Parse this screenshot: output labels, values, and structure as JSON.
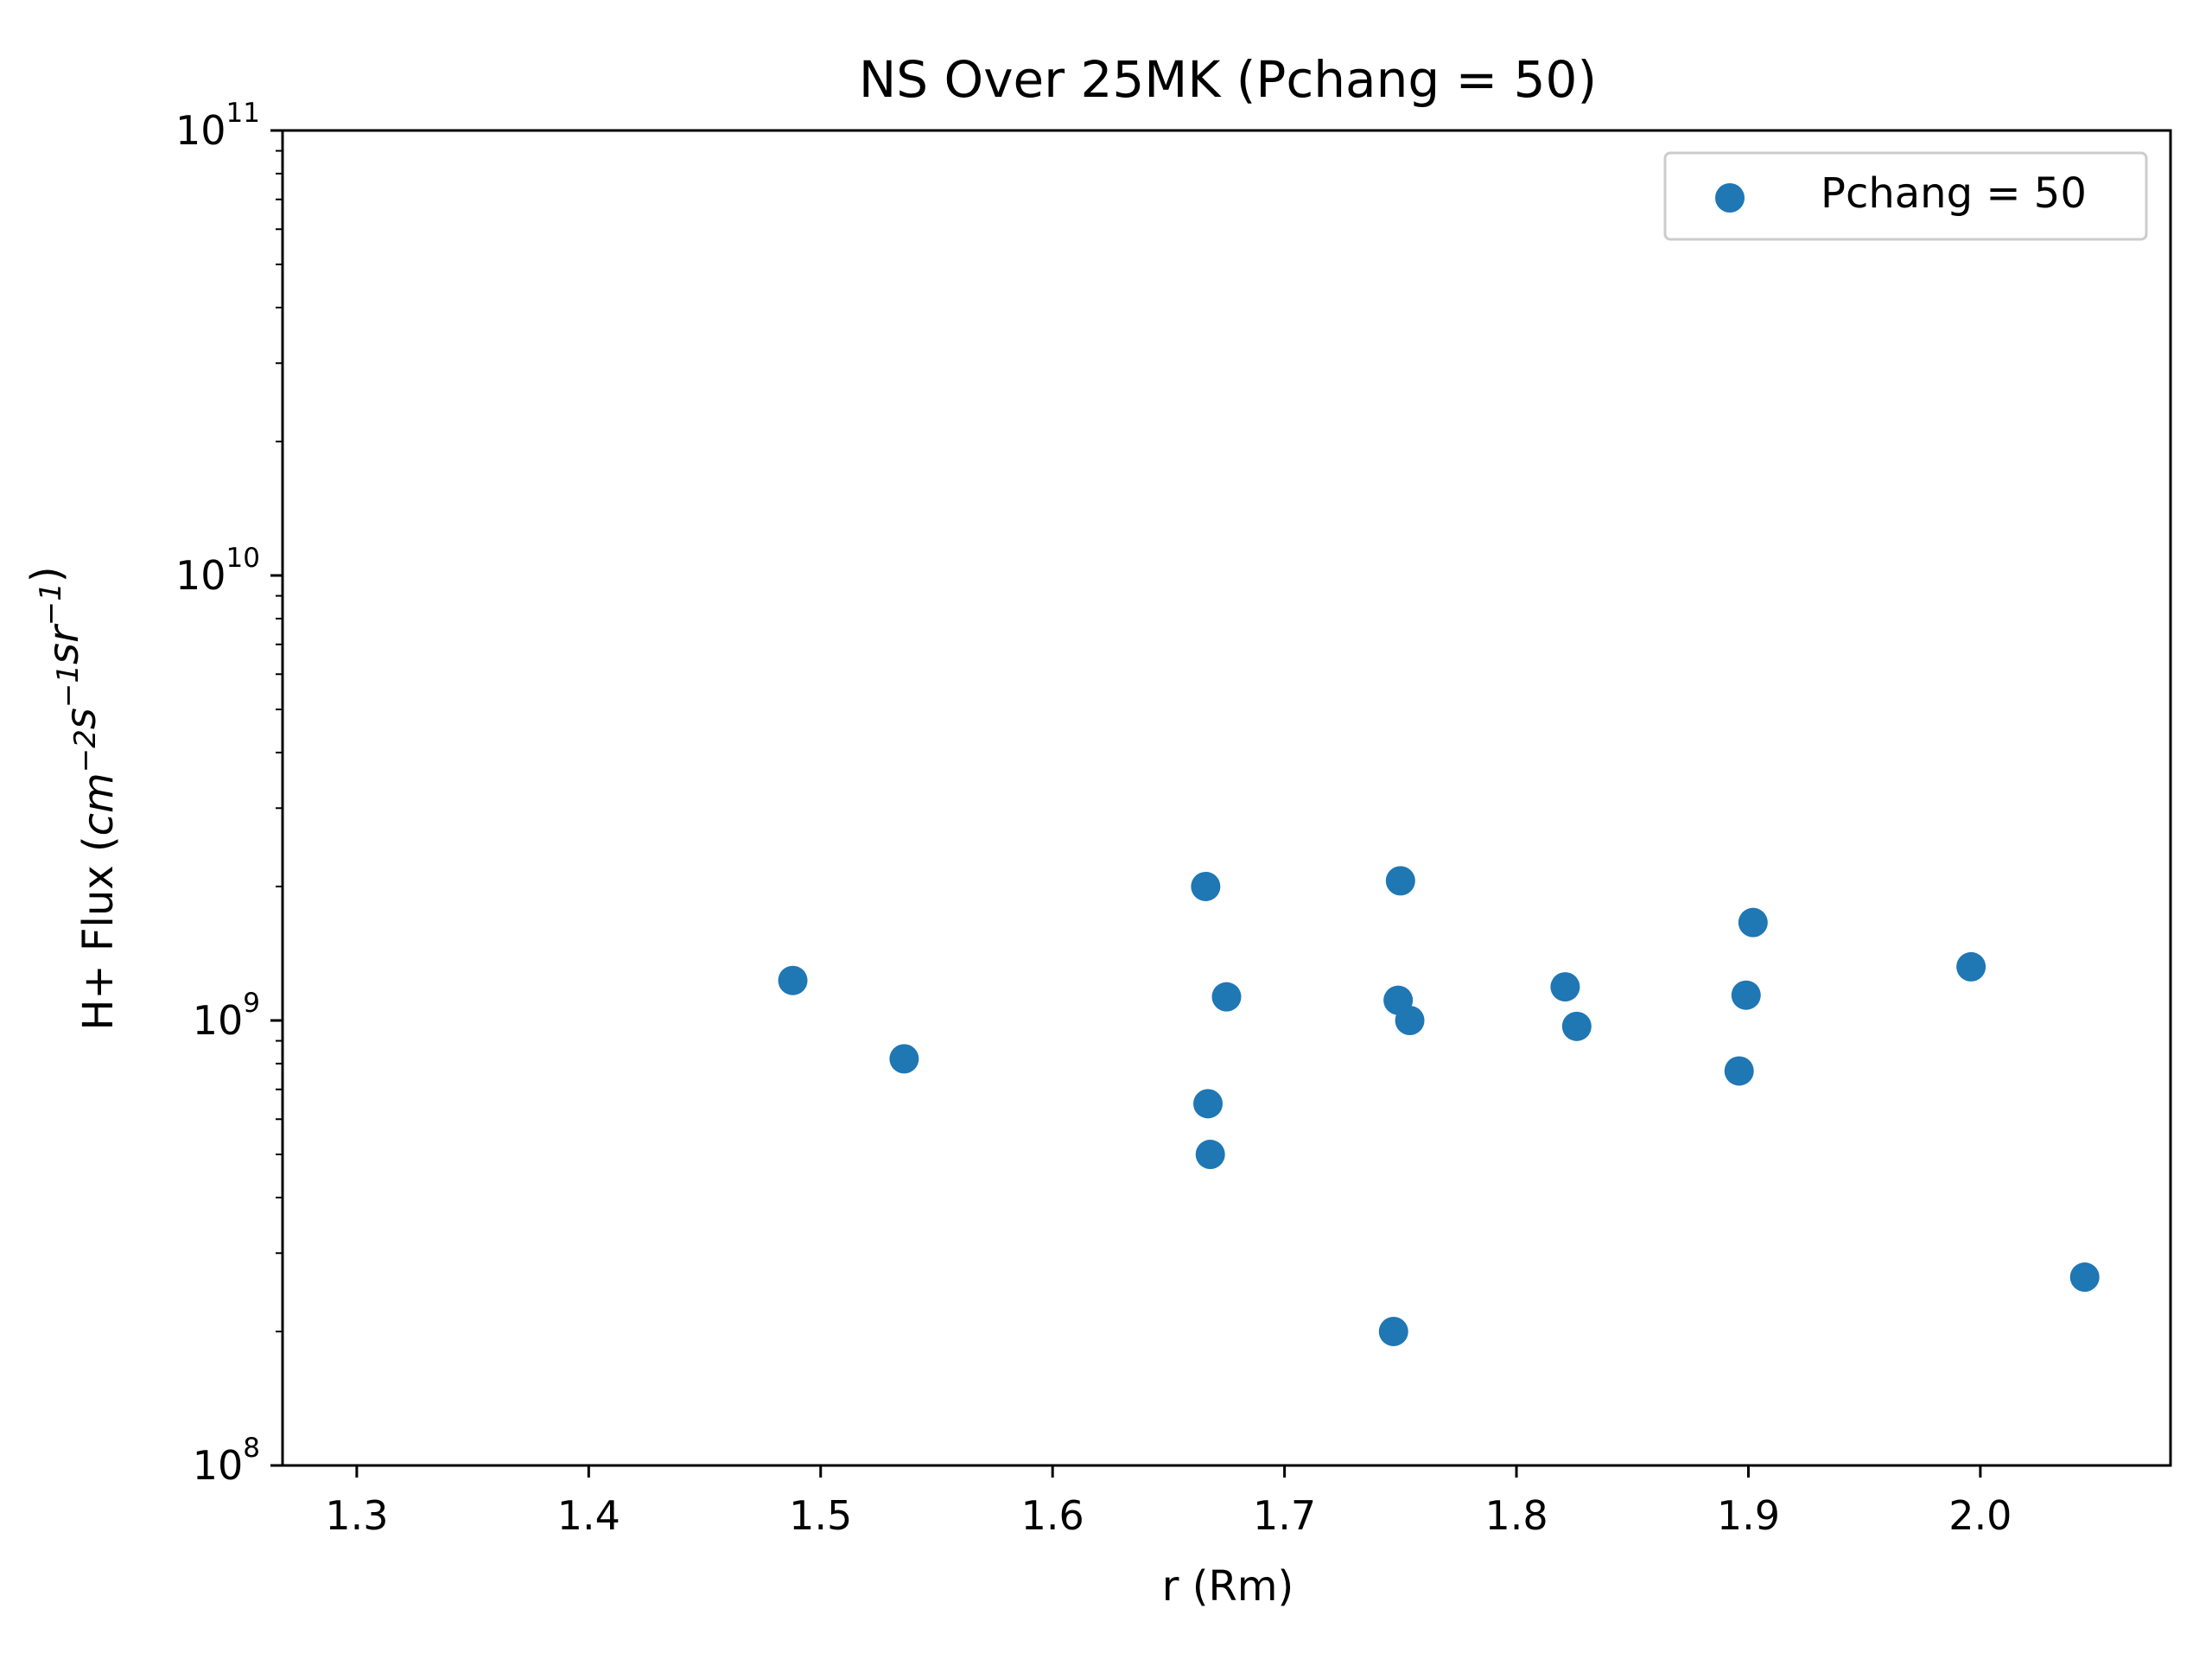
{
  "chart_data": {
    "type": "scatter",
    "title": "NS Over 25MK  (Pchang = 50)",
    "xlabel": "r (Rm)",
    "ylabel": {
      "prefix": "H+ Flux (",
      "parts": [
        {
          "base": "cm",
          "sup": "−2"
        },
        {
          "base": "s",
          "sup": "−1"
        },
        {
          "base": "sr",
          "sup": "−1"
        }
      ],
      "suffix": ")"
    },
    "xlim": [
      1.268,
      2.082
    ],
    "ylim": [
      100000000,
      100000000000
    ],
    "yscale": "log",
    "xticks": [
      {
        "value": 1.3,
        "label": "1.3"
      },
      {
        "value": 1.4,
        "label": "1.4"
      },
      {
        "value": 1.5,
        "label": "1.5"
      },
      {
        "value": 1.6,
        "label": "1.6"
      },
      {
        "value": 1.7,
        "label": "1.7"
      },
      {
        "value": 1.8,
        "label": "1.8"
      },
      {
        "value": 1.9,
        "label": "1.9"
      },
      {
        "value": 2.0,
        "label": "2.0"
      }
    ],
    "yticks": [
      {
        "value": 100000000,
        "base": "10",
        "exp": "8"
      },
      {
        "value": 1000000000,
        "base": "10",
        "exp": "9"
      },
      {
        "value": 10000000000,
        "base": "10",
        "exp": "10"
      },
      {
        "value": 100000000000,
        "base": "10",
        "exp": "11"
      }
    ],
    "grid": false,
    "legend": {
      "position": "top-right"
    },
    "series": [
      {
        "name": "Pchang = 50",
        "color": "#1f77b4",
        "points": [
          {
            "x": 1.488,
            "y": 1230000000
          },
          {
            "x": 1.536,
            "y": 820000000
          },
          {
            "x": 1.666,
            "y": 2000000000
          },
          {
            "x": 1.667,
            "y": 650000000
          },
          {
            "x": 1.668,
            "y": 500000000
          },
          {
            "x": 1.675,
            "y": 1130000000
          },
          {
            "x": 1.747,
            "y": 200000000
          },
          {
            "x": 1.749,
            "y": 1110000000
          },
          {
            "x": 1.75,
            "y": 2060000000
          },
          {
            "x": 1.754,
            "y": 1000000000
          },
          {
            "x": 1.821,
            "y": 1190000000
          },
          {
            "x": 1.826,
            "y": 970000000
          },
          {
            "x": 1.896,
            "y": 770000000
          },
          {
            "x": 1.899,
            "y": 1140000000
          },
          {
            "x": 1.902,
            "y": 1660000000
          },
          {
            "x": 1.996,
            "y": 1320000000
          },
          {
            "x": 2.045,
            "y": 265000000
          }
        ]
      }
    ]
  }
}
